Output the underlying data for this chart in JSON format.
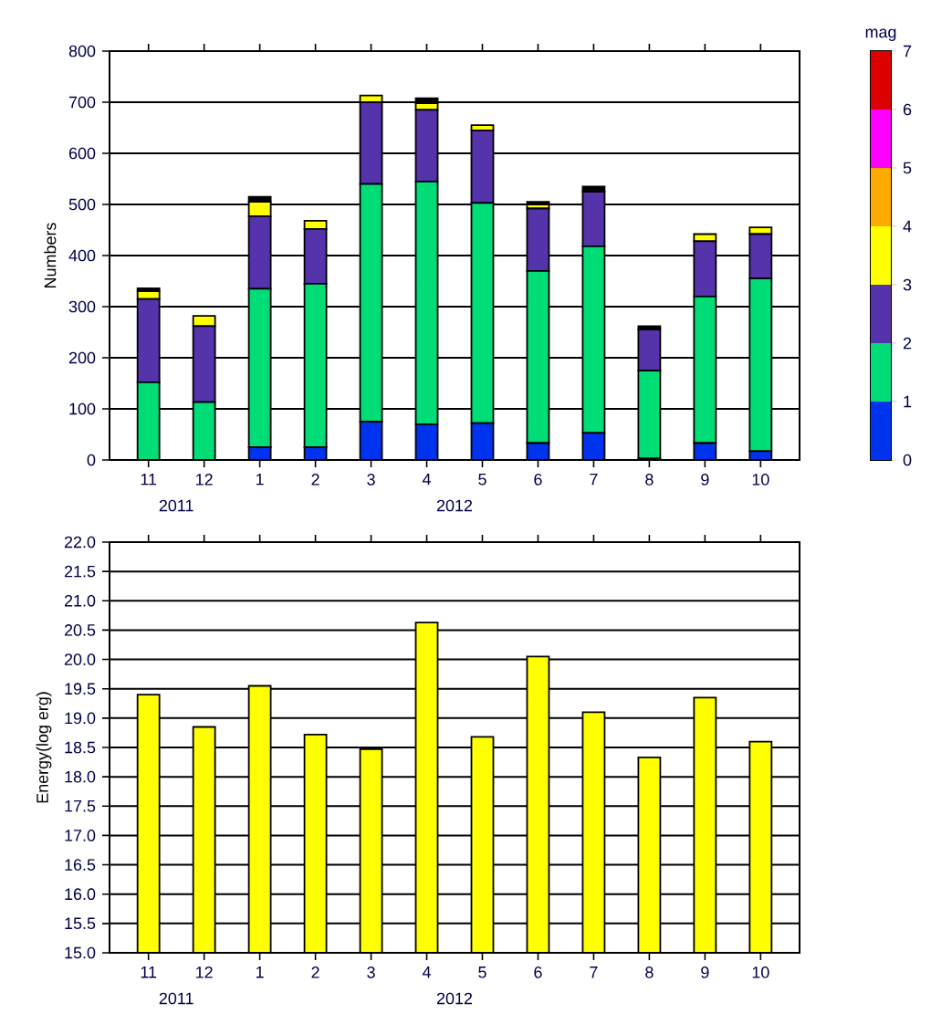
{
  "chart_data": [
    {
      "type": "bar",
      "stacked": true,
      "ylabel": "Numbers",
      "clabel": "mag",
      "clim": [
        0,
        7
      ],
      "cticks": [
        0,
        1,
        2,
        3,
        4,
        5,
        6,
        7
      ],
      "grid": "y",
      "categories": [
        "11",
        "12",
        "1",
        "2",
        "3",
        "4",
        "5",
        "6",
        "7",
        "8",
        "9",
        "10"
      ],
      "annotations": [
        "2011",
        "2012"
      ],
      "ylim": [
        0,
        800
      ],
      "yticks": [
        0,
        100,
        200,
        300,
        400,
        500,
        600,
        700,
        800
      ],
      "series": [
        {
          "color": "#0033ee",
          "values": [
            0,
            0,
            25,
            25,
            75,
            70,
            72,
            33,
            53,
            3,
            33,
            17
          ]
        },
        {
          "color": "#00dd77",
          "values": [
            152,
            113,
            310,
            320,
            465,
            475,
            431,
            337,
            365,
            172,
            287,
            338
          ]
        },
        {
          "color": "#5533aa",
          "values": [
            163,
            149,
            142,
            107,
            160,
            140,
            142,
            122,
            107,
            80,
            108,
            87
          ]
        },
        {
          "color": "#ffff00",
          "values": [
            15,
            20,
            28,
            16,
            13,
            13,
            10,
            8,
            0,
            0,
            14,
            13
          ]
        },
        {
          "color": "#ffaa00",
          "values": [
            0,
            0,
            0,
            0,
            0,
            0,
            0,
            0,
            0,
            0,
            0,
            0
          ]
        },
        {
          "color": "#ff00ff",
          "values": [
            0,
            0,
            0,
            0,
            0,
            0,
            0,
            0,
            0,
            0,
            0,
            0
          ]
        },
        {
          "color": "#dd0000",
          "values": [
            0,
            0,
            0,
            0,
            0,
            0,
            0,
            0,
            0,
            0,
            0,
            0
          ]
        },
        {
          "color": "#000000",
          "values": [
            6,
            0,
            10,
            null,
            0,
            10,
            0,
            5,
            10,
            7,
            0,
            0
          ]
        }
      ]
    },
    {
      "type": "bar",
      "ylabel": "Energy(log erg)",
      "grid": "y",
      "color": "#ffff00",
      "categories": [
        "11",
        "12",
        "1",
        "2",
        "3",
        "4",
        "5",
        "6",
        "7",
        "8",
        "9",
        "10"
      ],
      "annotations": [
        "2011",
        "2012"
      ],
      "ylim": [
        15,
        22
      ],
      "yticks": [
        {
          "value": 15,
          "label": "15.0"
        },
        {
          "value": 15.5,
          "label": "15.5"
        },
        {
          "value": 16,
          "label": "16.0"
        },
        {
          "value": 16.5,
          "label": "16.5"
        },
        {
          "value": 17,
          "label": "17.0"
        },
        {
          "value": 17.5,
          "label": "17.5"
        },
        {
          "value": 18,
          "label": "18.0"
        },
        {
          "value": 18.5,
          "label": "18.5"
        },
        {
          "value": 19,
          "label": "19.0"
        },
        {
          "value": 19.5,
          "label": "19.5"
        },
        {
          "value": 20,
          "label": "20.0"
        },
        {
          "value": 20.5,
          "label": "20.5"
        },
        {
          "value": 21,
          "label": "21.0"
        },
        {
          "value": 21.5,
          "label": "21.5"
        },
        {
          "value": 22,
          "label": "22.0"
        }
      ],
      "values": [
        19.4,
        18.85,
        19.55,
        18.72,
        18.47,
        20.63,
        18.68,
        20.05,
        19.1,
        18.33,
        19.35,
        18.6
      ]
    }
  ]
}
